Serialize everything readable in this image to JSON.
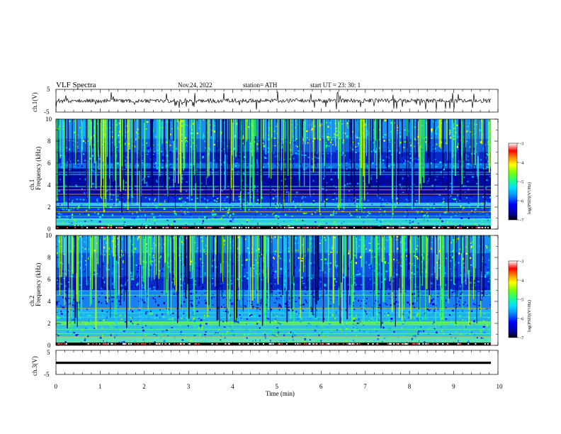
{
  "header": {
    "title": "VLF  Spectra",
    "date": "Nov.24, 2022",
    "station": "station= ATH",
    "start": "start  UT  =   23: 30: 1"
  },
  "chart_data": [
    {
      "type": "line",
      "name": "ch1-waveform",
      "ylabel": "ch.1(V)",
      "ylim": [
        -5,
        5
      ],
      "yticks": [
        "5",
        "-5"
      ],
      "xlim": [
        0,
        10
      ]
    },
    {
      "type": "heatmap",
      "name": "ch1-spectrogram",
      "ylabel": "ch.1\nFrequency (kHz)",
      "ylim": [
        0,
        10
      ],
      "yticks": [
        "0",
        "2",
        "4",
        "6",
        "8",
        "10"
      ],
      "xlim": [
        0,
        10
      ],
      "colorbar": {
        "label": "log(PSD)(V²/Hz)",
        "range": [
          -7,
          -3
        ],
        "ticks": [
          "-3",
          "-4",
          "-5",
          "-6",
          "-7"
        ]
      }
    },
    {
      "type": "heatmap",
      "name": "ch2-spectrogram",
      "ylabel": "ch.2\nFrequency (kHz)",
      "ylim": [
        0,
        10
      ],
      "yticks": [
        "0",
        "2",
        "4",
        "6",
        "8",
        "10"
      ],
      "xlim": [
        0,
        10
      ],
      "colorbar": {
        "label": "log(PSD)(V²/Hz)",
        "range": [
          -7,
          -3
        ],
        "ticks": [
          "-3",
          "-4",
          "-5",
          "-6",
          "-7"
        ]
      }
    },
    {
      "type": "line",
      "name": "ch3-waveform",
      "ylabel": "ch.3(V)",
      "ylim": [
        -5,
        5
      ],
      "yticks": [
        "5",
        "-5"
      ],
      "xlim": [
        0,
        10
      ]
    }
  ],
  "xaxis": {
    "label": "Time  (min)",
    "ticks": [
      "0",
      "1",
      "2",
      "3",
      "4",
      "5",
      "6",
      "7",
      "8",
      "9",
      "10"
    ]
  },
  "colors": {
    "colormap": [
      "#000000",
      "#0000a0",
      "#0000ff",
      "#0090ff",
      "#00e0ff",
      "#20ff80",
      "#80ff00",
      "#ffff00",
      "#ff8000",
      "#ff0000",
      "#ffffff"
    ]
  }
}
